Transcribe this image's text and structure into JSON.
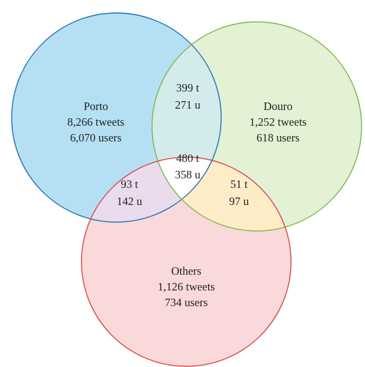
{
  "colors": {
    "porto_fill": "#b5e0f4",
    "porto_stroke": "#1f6eb5",
    "douro_fill": "#e3f1d5",
    "douro_stroke": "#7ab648",
    "others_fill": "#f9d9d9",
    "others_stroke": "#d64545",
    "porto_douro_fill": "#d3eceb",
    "porto_others_fill": "#eadcec",
    "douro_others_fill": "#fcedc7",
    "center_fill": "#ffffff"
  },
  "regions": {
    "porto": {
      "name": "Porto",
      "tweets": "8,266 tweets",
      "users": "6,070 users"
    },
    "douro": {
      "name": "Douro",
      "tweets": "1,252 tweets",
      "users": "618 users"
    },
    "others": {
      "name": "Others",
      "tweets": "1,126 tweets",
      "users": "734 users"
    },
    "porto_douro": {
      "tweets": "399 t",
      "users": "271 u"
    },
    "porto_others": {
      "tweets": "93 t",
      "users": "142 u"
    },
    "douro_others": {
      "tweets": "51 t",
      "users": "97 u"
    },
    "all_three": {
      "tweets": "480 t",
      "users": "358 u"
    }
  }
}
